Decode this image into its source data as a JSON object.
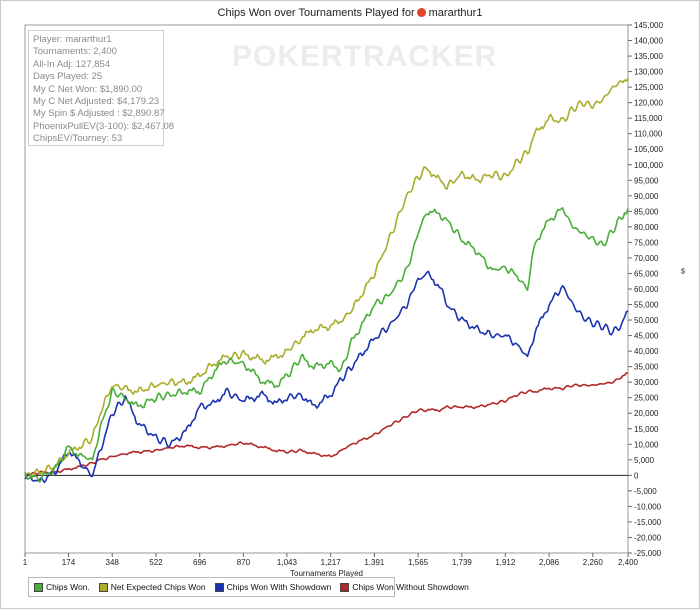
{
  "title": {
    "text": "Chips Won over Tournaments Played for",
    "player": "mararthur1",
    "logo_icon": "pokerstars-icon"
  },
  "watermark": "POKERTRACKER",
  "info_box": [
    "Player: mararthur1",
    "Tournaments: 2,400",
    "All-In Adj: 127,854",
    "Days Played: 25",
    "My C Net Won: $1,890.00",
    "My C Net Adjusted: $4,179.23",
    "My Spin $ Adjusted : $2,890.87",
    "PhoenixPullEV(3-100): $2,467.08",
    "ChipsEV/Tourney: 53"
  ],
  "chart_data": {
    "type": "line",
    "title": "Chips Won over Tournaments Played for mararthur1",
    "xlabel": "Tournaments Played",
    "ylabel": "$",
    "xlim": [
      1,
      2400
    ],
    "ylim": [
      -25000,
      145000
    ],
    "x_ticks": [
      "1",
      "174",
      "348",
      "522",
      "696",
      "870",
      "1,043",
      "1,217",
      "1,391",
      "1,565",
      "1,739",
      "1,912",
      "2,086",
      "2,260",
      "2,400"
    ],
    "x_tick_values": [
      1,
      174,
      348,
      522,
      696,
      870,
      1043,
      1217,
      1391,
      1565,
      1739,
      1912,
      2086,
      2260,
      2400
    ],
    "y_ticks": [
      "-25,000",
      "-20,000",
      "-15,000",
      "-10,000",
      "-5,000",
      "0",
      "5,000",
      "10,000",
      "15,000",
      "20,000",
      "25,000",
      "30,000",
      "35,000",
      "40,000",
      "45,000",
      "50,000",
      "55,000",
      "60,000",
      "65,000",
      "70,000",
      "75,000",
      "80,000",
      "85,000",
      "90,000",
      "95,000",
      "100,000",
      "105,000",
      "110,000",
      "115,000",
      "120,000",
      "125,000",
      "130,000",
      "135,000",
      "140,000",
      "145,000"
    ],
    "y_tick_values": [
      -25000,
      -20000,
      -15000,
      -10000,
      -5000,
      0,
      5000,
      10000,
      15000,
      20000,
      25000,
      30000,
      35000,
      40000,
      45000,
      50000,
      55000,
      60000,
      65000,
      70000,
      75000,
      80000,
      85000,
      90000,
      95000,
      100000,
      105000,
      110000,
      115000,
      120000,
      125000,
      130000,
      135000,
      140000,
      145000
    ],
    "x": [
      1,
      60,
      120,
      174,
      230,
      270,
      300,
      348,
      400,
      450,
      522,
      580,
      640,
      696,
      750,
      800,
      870,
      950,
      1000,
      1043,
      1100,
      1150,
      1217,
      1260,
      1300,
      1391,
      1450,
      1520,
      1565,
      1600,
      1650,
      1680,
      1739,
      1800,
      1860,
      1912,
      1960,
      2000,
      2030,
      2086,
      2140,
      2180,
      2220,
      2260,
      2300,
      2340,
      2380,
      2400
    ],
    "series": [
      {
        "name": "Chips Won.",
        "color": "#4aad3a",
        "values": [
          0,
          -1000,
          2000,
          9000,
          6000,
          5000,
          15000,
          27000,
          25000,
          22000,
          25000,
          26000,
          27000,
          27000,
          33000,
          37000,
          36000,
          30000,
          29000,
          32000,
          38000,
          35000,
          36000,
          34000,
          43000,
          55000,
          58000,
          66000,
          78000,
          85000,
          84000,
          82000,
          76000,
          72000,
          66000,
          67000,
          64000,
          60000,
          75000,
          82000,
          86000,
          80000,
          78000,
          76000,
          74000,
          79000,
          84000,
          86000
        ]
      },
      {
        "name": "Net Expected Chips Won",
        "color": "#a9ad2b",
        "values": [
          0,
          1000,
          3000,
          7000,
          10000,
          12000,
          20000,
          29000,
          28000,
          27000,
          29000,
          30000,
          30000,
          32000,
          36000,
          38000,
          39000,
          37000,
          38000,
          40000,
          44000,
          47000,
          48000,
          50000,
          53000,
          65000,
          76000,
          90000,
          96000,
          99000,
          95000,
          93000,
          97000,
          95000,
          97000,
          96000,
          101000,
          104000,
          110000,
          115000,
          114000,
          118000,
          120000,
          119000,
          121000,
          125000,
          127000,
          128000
        ]
      },
      {
        "name": "Chips Won With Showdown",
        "color": "#1c33b0",
        "values": [
          0,
          -2000,
          1000,
          8000,
          3000,
          0,
          8000,
          20000,
          25000,
          17000,
          12000,
          10000,
          14000,
          22000,
          23000,
          27000,
          24000,
          26000,
          23000,
          25000,
          26000,
          22000,
          26000,
          31000,
          35000,
          44000,
          48000,
          55000,
          63000,
          65000,
          61000,
          55000,
          50000,
          47000,
          45000,
          45000,
          42000,
          38000,
          46000,
          55000,
          61000,
          55000,
          51000,
          49000,
          48000,
          46000,
          49000,
          53000
        ]
      },
      {
        "name": "Chips Won Without Showdown",
        "color": "#b1292a",
        "values": [
          0,
          1000,
          1000,
          2000,
          3000,
          4000,
          5000,
          6000,
          7000,
          7500,
          8000,
          9000,
          9500,
          9000,
          9000,
          9500,
          10500,
          9000,
          8000,
          7500,
          8000,
          7000,
          6000,
          8000,
          10000,
          13000,
          16000,
          19000,
          21000,
          21000,
          21000,
          22000,
          22000,
          22000,
          23000,
          24000,
          26000,
          27000,
          27000,
          28000,
          28000,
          29000,
          29000,
          29000,
          29500,
          30000,
          32000,
          33000
        ]
      }
    ],
    "legend_position": "bottom-left"
  }
}
